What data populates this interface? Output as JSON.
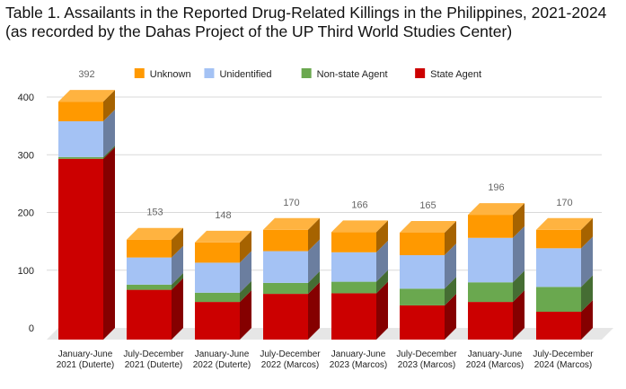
{
  "chart_data": {
    "type": "bar",
    "stacked": true,
    "style": "3d",
    "title": "Table 1. Assailants in the Reported Drug-Related Killings in the Philippines, 2021-2024",
    "subtitle": "(as recorded by the Dahas Project of the UP Third World Studies Center)",
    "categories": [
      [
        "January-June",
        "2021 (Duterte)"
      ],
      [
        "July-December",
        "2021 (Duterte)"
      ],
      [
        "January-June",
        "2022 (Duterte)"
      ],
      [
        "July-December",
        "2022 (Marcos)"
      ],
      [
        "January-June",
        "2023 (Marcos)"
      ],
      [
        "July-December",
        "2023 (Marcos)"
      ],
      [
        "January-June",
        "2024 (Marcos)"
      ],
      [
        "July-December",
        "2024 (Marcos)"
      ]
    ],
    "series": [
      {
        "name": "State Agent",
        "color": "#cc0000",
        "values": [
          293,
          66,
          45,
          59,
          60,
          39,
          45,
          28
        ]
      },
      {
        "name": "Non-state Agent",
        "color": "#6aa84f",
        "values": [
          3,
          9,
          16,
          19,
          20,
          29,
          34,
          43
        ]
      },
      {
        "name": "Unidentified",
        "color": "#a4c2f4",
        "values": [
          62,
          47,
          52,
          55,
          51,
          58,
          77,
          67
        ]
      },
      {
        "name": "Unknown",
        "color": "#ff9900",
        "values": [
          34,
          31,
          35,
          37,
          35,
          39,
          40,
          32
        ]
      }
    ],
    "totals": [
      392,
      153,
      148,
      170,
      166,
      165,
      196,
      170
    ],
    "yticks": [
      "0",
      "100",
      "200",
      "300",
      "400"
    ],
    "ylim": [
      0,
      400
    ],
    "legend_order": [
      "Unknown",
      "Unidentified",
      "Non-state Agent",
      "State Agent"
    ],
    "legend_position": "top",
    "grid": true
  }
}
